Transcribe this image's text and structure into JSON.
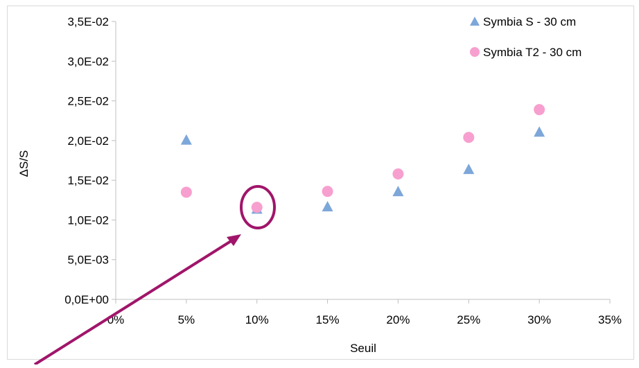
{
  "colors": {
    "series_triangle": "#7da7d9",
    "series_circle": "#f79fcf",
    "annotation": "#a0156a",
    "axis": "#bfbfbf",
    "border": "#d9d9d9"
  },
  "chart_data": {
    "type": "scatter",
    "xlabel": "Seuil",
    "ylabel": "ΔS/S",
    "xlim": [
      0,
      0.35
    ],
    "ylim": [
      0,
      0.035
    ],
    "x_ticks": [
      0,
      0.05,
      0.1,
      0.15,
      0.2,
      0.25,
      0.3,
      0.35
    ],
    "x_tick_labels": [
      "0%",
      "5%",
      "10%",
      "15%",
      "20%",
      "25%",
      "30%",
      "35%"
    ],
    "y_ticks": [
      0,
      0.005,
      0.01,
      0.015,
      0.02,
      0.025,
      0.03,
      0.035
    ],
    "y_tick_labels": [
      "0,0E+00",
      "5,0E-03",
      "1,0E-02",
      "1,5E-02",
      "2,0E-02",
      "2,5E-02",
      "3,0E-02",
      "3,5E-02"
    ],
    "grid": false,
    "legend_position": "top-right",
    "series": [
      {
        "name": "Symbia S - 30 cm",
        "marker": "triangle",
        "x": [
          0.05,
          0.1,
          0.15,
          0.2,
          0.25,
          0.3
        ],
        "y": [
          0.0201,
          0.0114,
          0.0117,
          0.0136,
          0.0164,
          0.0211
        ]
      },
      {
        "name": "Symbia T2 - 30 cm",
        "marker": "circle",
        "x": [
          0.05,
          0.1,
          0.15,
          0.2,
          0.25,
          0.3
        ],
        "y": [
          0.0135,
          0.0116,
          0.0136,
          0.0158,
          0.0204,
          0.0239
        ]
      }
    ],
    "annotations": [
      {
        "type": "ellipse-highlight",
        "x": 0.1,
        "y": 0.0115
      },
      {
        "type": "arrow",
        "points_to": {
          "x": 0.0875,
          "y": 0.0095
        }
      }
    ]
  }
}
